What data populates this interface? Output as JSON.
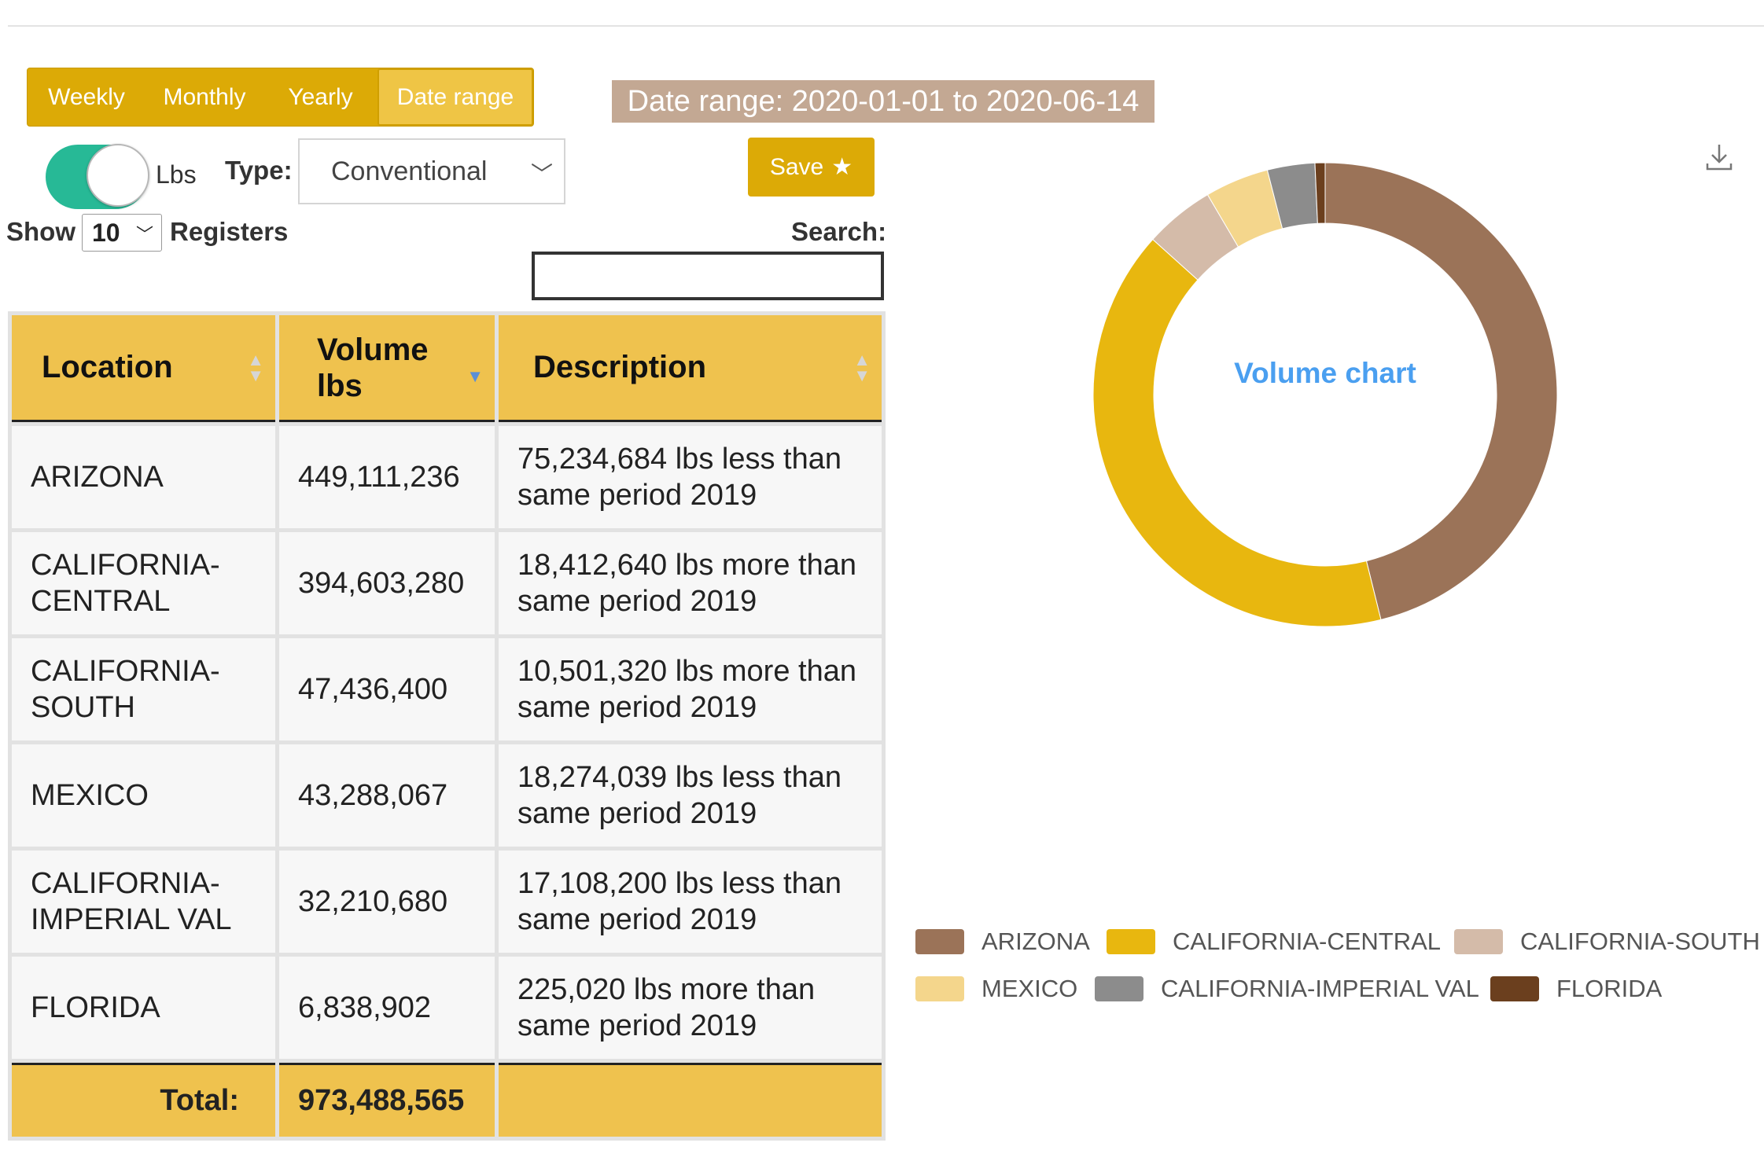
{
  "period_tabs": [
    {
      "label": "Weekly",
      "active": false
    },
    {
      "label": "Monthly",
      "active": false
    },
    {
      "label": "Yearly",
      "active": false
    },
    {
      "label": "Date range",
      "active": true
    }
  ],
  "date_range_label": "Date range: 2020-01-01 to 2020-06-14",
  "unit_toggle": {
    "label": "Lbs",
    "on": true
  },
  "type_filter": {
    "label": "Type:",
    "selected": "Conventional"
  },
  "save_button": {
    "label": "Save",
    "icon": "star-icon"
  },
  "show": {
    "prefix": "Show",
    "value": "10",
    "suffix": "Registers"
  },
  "search": {
    "label": "Search:",
    "value": ""
  },
  "table": {
    "headers": [
      "Location",
      "Volume lbs",
      "Description"
    ],
    "rows": [
      {
        "location": "ARIZONA",
        "volume": "449,111,236",
        "description": "75,234,684 lbs less than same period 2019"
      },
      {
        "location": "CALIFORNIA-CENTRAL",
        "volume": "394,603,280",
        "description": "18,412,640 lbs more than same period 2019"
      },
      {
        "location": "CALIFORNIA-SOUTH",
        "volume": "47,436,400",
        "description": "10,501,320 lbs more than same period 2019"
      },
      {
        "location": "MEXICO",
        "volume": "43,288,067",
        "description": "18,274,039 lbs less than same period 2019"
      },
      {
        "location": "CALIFORNIA-IMPERIAL VAL",
        "volume": "32,210,680",
        "description": "17,108,200 lbs less than same period 2019"
      },
      {
        "location": "FLORIDA",
        "volume": "6,838,902",
        "description": "225,020 lbs more than same period 2019"
      }
    ],
    "total_label": "Total:",
    "total_value": "973,488,565"
  },
  "chart_data": {
    "type": "pie",
    "title": "Volume chart",
    "categories": [
      "ARIZONA",
      "CALIFORNIA-CENTRAL",
      "CALIFORNIA-SOUTH",
      "MEXICO",
      "CALIFORNIA-IMPERIAL VAL",
      "FLORIDA"
    ],
    "values": [
      449111236,
      394603280,
      47436400,
      43288067,
      32210680,
      6838902
    ],
    "colors": [
      "#9b7358",
      "#e8b70f",
      "#d4bba9",
      "#f4d68c",
      "#8c8c8c",
      "#6b3f1e"
    ],
    "legend_labels": [
      "ARIZONA",
      "CALIFORNIA-CENTRAL",
      "CALIFORNIA-SOUTH",
      "MEXICO",
      "CALIFORNIA-IMPERIAL VAL",
      "FLORIDA"
    ],
    "legend_position": "bottom"
  }
}
